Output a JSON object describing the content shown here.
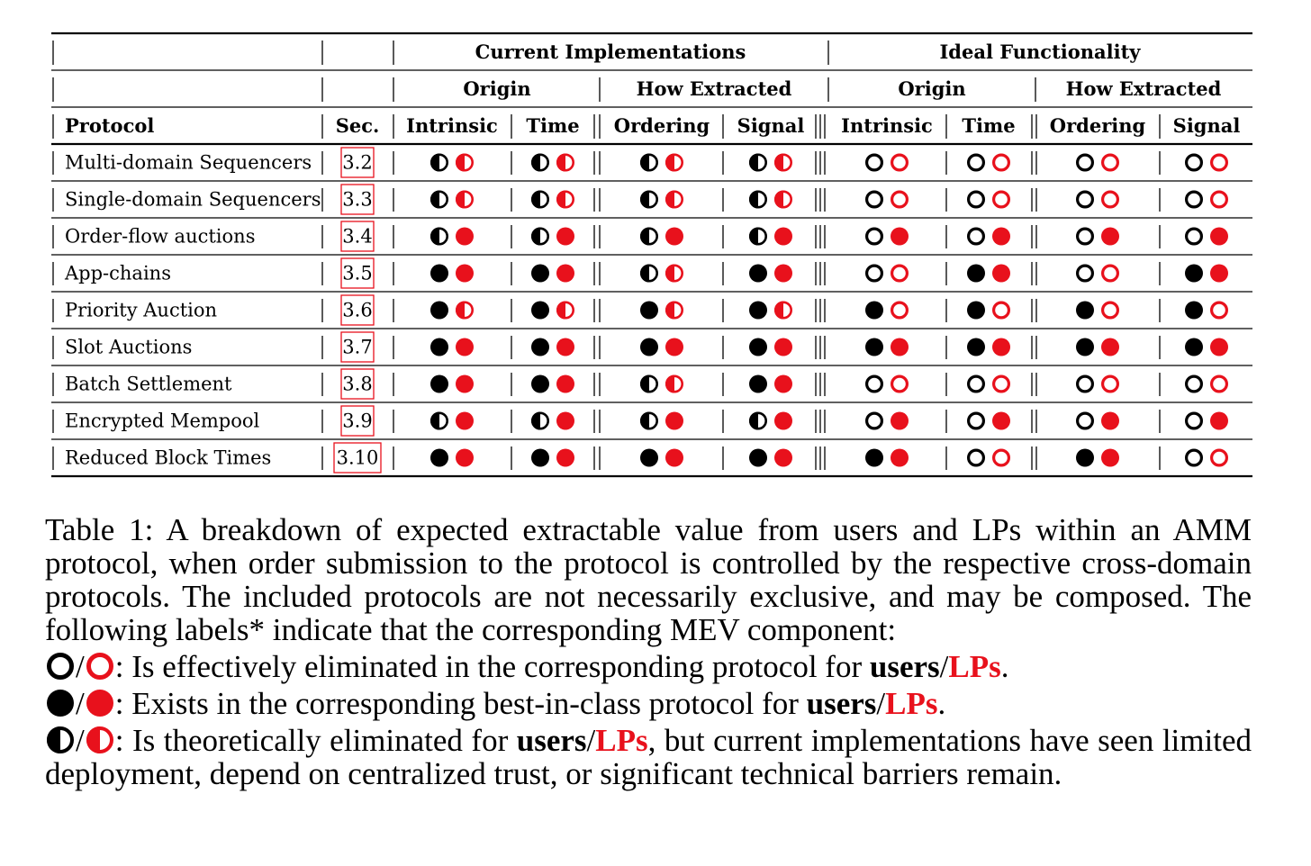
{
  "colors": {
    "user_black": "#000000",
    "lp_red": "#e8111c"
  },
  "table": {
    "group_headers": [
      "Current Implementations",
      "Ideal Functionality"
    ],
    "sub_headers": [
      "Origin",
      "How Extracted",
      "Origin",
      "How Extracted"
    ],
    "column_headers": [
      "Protocol",
      "Sec.",
      "Intrinsic",
      "Time",
      "Ordering",
      "Signal",
      "Intrinsic",
      "Time",
      "Ordering",
      "Signal"
    ],
    "rows": [
      {
        "protocol": "Multi-domain Sequencers",
        "sec": "3.2",
        "cells": [
          [
            "half",
            "half"
          ],
          [
            "half",
            "half"
          ],
          [
            "half",
            "half"
          ],
          [
            "half",
            "half"
          ],
          [
            "empty",
            "empty"
          ],
          [
            "empty",
            "empty"
          ],
          [
            "empty",
            "empty"
          ],
          [
            "empty",
            "empty"
          ]
        ]
      },
      {
        "protocol": "Single-domain Sequencers",
        "sec": "3.3",
        "cells": [
          [
            "half",
            "half"
          ],
          [
            "half",
            "half"
          ],
          [
            "half",
            "half"
          ],
          [
            "half",
            "half"
          ],
          [
            "empty",
            "empty"
          ],
          [
            "empty",
            "empty"
          ],
          [
            "empty",
            "empty"
          ],
          [
            "empty",
            "empty"
          ]
        ]
      },
      {
        "protocol": "Order-flow auctions",
        "sec": "3.4",
        "cells": [
          [
            "half",
            "full"
          ],
          [
            "half",
            "full"
          ],
          [
            "half",
            "full"
          ],
          [
            "half",
            "full"
          ],
          [
            "empty",
            "full"
          ],
          [
            "empty",
            "full"
          ],
          [
            "empty",
            "full"
          ],
          [
            "empty",
            "full"
          ]
        ]
      },
      {
        "protocol": "App-chains",
        "sec": "3.5",
        "cells": [
          [
            "full",
            "full"
          ],
          [
            "full",
            "full"
          ],
          [
            "half",
            "half"
          ],
          [
            "full",
            "full"
          ],
          [
            "empty",
            "empty"
          ],
          [
            "full",
            "full"
          ],
          [
            "empty",
            "empty"
          ],
          [
            "full",
            "full"
          ]
        ]
      },
      {
        "protocol": "Priority Auction",
        "sec": "3.6",
        "cells": [
          [
            "full",
            "half"
          ],
          [
            "full",
            "half"
          ],
          [
            "full",
            "half"
          ],
          [
            "full",
            "half"
          ],
          [
            "full",
            "empty"
          ],
          [
            "full",
            "empty"
          ],
          [
            "full",
            "empty"
          ],
          [
            "full",
            "empty"
          ]
        ]
      },
      {
        "protocol": "Slot Auctions",
        "sec": "3.7",
        "cells": [
          [
            "full",
            "full"
          ],
          [
            "full",
            "full"
          ],
          [
            "full",
            "full"
          ],
          [
            "full",
            "full"
          ],
          [
            "full",
            "full"
          ],
          [
            "full",
            "full"
          ],
          [
            "full",
            "full"
          ],
          [
            "full",
            "full"
          ]
        ]
      },
      {
        "protocol": "Batch Settlement",
        "sec": "3.8",
        "cells": [
          [
            "full",
            "full"
          ],
          [
            "full",
            "full"
          ],
          [
            "half",
            "half"
          ],
          [
            "full",
            "full"
          ],
          [
            "empty",
            "empty"
          ],
          [
            "empty",
            "empty"
          ],
          [
            "empty",
            "empty"
          ],
          [
            "empty",
            "empty"
          ]
        ]
      },
      {
        "protocol": "Encrypted Mempool",
        "sec": "3.9",
        "cells": [
          [
            "half",
            "full"
          ],
          [
            "half",
            "full"
          ],
          [
            "half",
            "full"
          ],
          [
            "half",
            "full"
          ],
          [
            "empty",
            "full"
          ],
          [
            "empty",
            "full"
          ],
          [
            "empty",
            "full"
          ],
          [
            "empty",
            "full"
          ]
        ]
      },
      {
        "protocol": "Reduced Block Times",
        "sec": "3.10",
        "cells": [
          [
            "full",
            "full"
          ],
          [
            "full",
            "full"
          ],
          [
            "full",
            "full"
          ],
          [
            "full",
            "full"
          ],
          [
            "full",
            "full"
          ],
          [
            "empty",
            "empty"
          ],
          [
            "full",
            "full"
          ],
          [
            "empty",
            "empty"
          ]
        ]
      }
    ]
  },
  "caption": {
    "text": "Table 1: A breakdown of expected extractable value from users and LPs within an AMM protocol, when order submission to the protocol is controlled by the respective cross-domain protocols. The included protocols are not necessarily exclusive, and may be composed. The following labels* indicate that the corresponding MEV component:",
    "slash": "/",
    "users": "users",
    "lps": "LPs",
    "period": ".",
    "legend": [
      {
        "symbol": "empty",
        "before": ": Is effectively eliminated in the corresponding protocol for ",
        "after": ""
      },
      {
        "symbol": "full",
        "before": ": Exists in the corresponding best-in-class protocol for ",
        "after": ""
      },
      {
        "symbol": "half",
        "before": ": Is theoretically eliminated for ",
        "after": ", but current implementations have seen limited deployment, depend on centralized trust, or significant technical barriers remain."
      }
    ]
  }
}
